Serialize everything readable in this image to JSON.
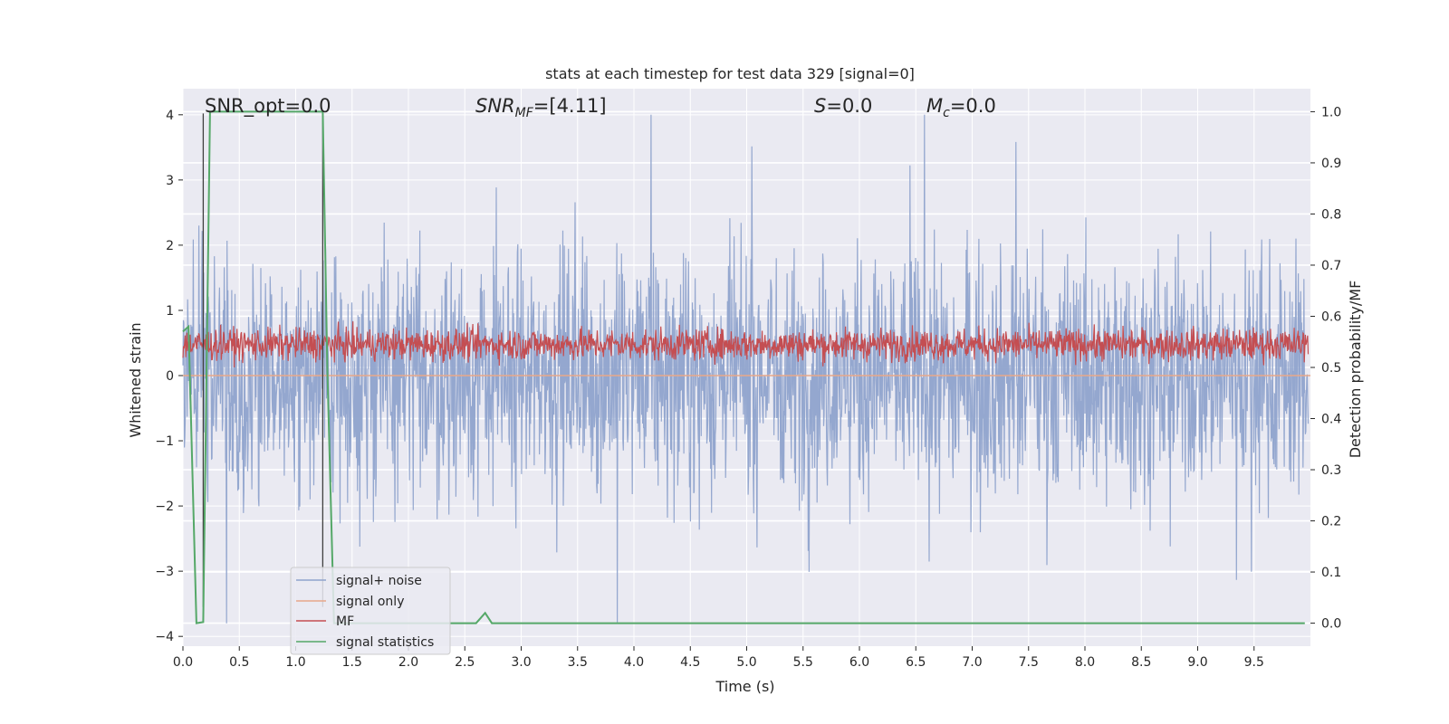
{
  "chart_data": {
    "type": "line",
    "title": "stats at each timestep for test data 329 [signal=0]",
    "xlabel": "Time (s)",
    "ylabel_left": "Whitened strain",
    "ylabel_right": "Detection probability/MF",
    "xlim": [
      0.0,
      10.0
    ],
    "ylim_left": [
      -4.15,
      4.4
    ],
    "ylim_right": [
      -0.045,
      1.045
    ],
    "x_ticks": [
      "0.0",
      "0.5",
      "1.0",
      "1.5",
      "2.0",
      "2.5",
      "3.0",
      "3.5",
      "4.0",
      "4.5",
      "5.0",
      "5.5",
      "6.0",
      "6.5",
      "7.0",
      "7.5",
      "8.0",
      "8.5",
      "9.0",
      "9.5"
    ],
    "x_tick_values": [
      0.0,
      0.5,
      1.0,
      1.5,
      2.0,
      2.5,
      3.0,
      3.5,
      4.0,
      4.5,
      5.0,
      5.5,
      6.0,
      6.5,
      7.0,
      7.5,
      8.0,
      8.5,
      9.0,
      9.5
    ],
    "y_left_ticks": [
      "4",
      "3",
      "2",
      "1",
      "0",
      "−1",
      "−2",
      "−3",
      "−4"
    ],
    "y_left_tick_values": [
      4,
      3,
      2,
      1,
      0,
      -1,
      -2,
      -3,
      -4
    ],
    "y_right_ticks": [
      "1.0",
      "0.9",
      "0.8",
      "0.7",
      "0.6",
      "0.5",
      "0.4",
      "0.3",
      "0.2",
      "0.1",
      "0.0"
    ],
    "y_right_tick_values": [
      1.0,
      0.9,
      0.8,
      0.7,
      0.6,
      0.5,
      0.4,
      0.3,
      0.2,
      0.1,
      0.0
    ],
    "grid": true,
    "legend_position": "lower-left",
    "annotations": {
      "snr_opt": "SNR_opt=0.0",
      "snr_mf_italic": "SNR",
      "snr_mf_sub": "MF",
      "snr_mf_rest": "=[4.11]",
      "s_italic": "S",
      "s_rest": "=0.0",
      "mc_italic": "M",
      "mc_sub": "c",
      "mc_rest": "=0.0"
    },
    "series": [
      {
        "name": "signal+ noise",
        "color": "#8fa3cc",
        "axis": "left",
        "kind": "noise",
        "amplitude_range": [
          -3.8,
          4.0
        ]
      },
      {
        "name": "signal only",
        "color": "#e8a88a",
        "axis": "left",
        "kind": "flat",
        "values_x": [
          0,
          10
        ],
        "values_y": [
          0,
          0
        ]
      },
      {
        "name": "MF",
        "color": "#c44e52",
        "axis": "right",
        "kind": "noise",
        "range": [
          0.5,
          0.59
        ]
      },
      {
        "name": "signal statistics",
        "color": "#55a868",
        "axis": "right",
        "x": [
          0.0,
          0.05,
          0.12,
          0.18,
          0.24,
          0.29,
          1.24,
          1.28,
          1.34,
          2.6,
          2.68,
          2.74,
          9.95
        ],
        "y": [
          0.57,
          0.58,
          0.0,
          0.002,
          1.0,
          1.0,
          1.0,
          0.5,
          0.0,
          0.0,
          0.02,
          0.0,
          0.0
        ]
      }
    ],
    "vertical_markers": [
      {
        "x": 0.18,
        "color": "#404040",
        "y_top_left": 4.02
      },
      {
        "x": 1.24,
        "color": "#404040",
        "y_top_left": 4.02
      }
    ]
  }
}
